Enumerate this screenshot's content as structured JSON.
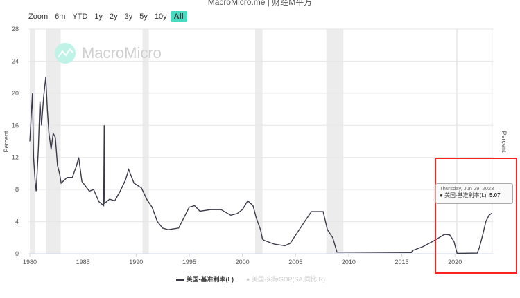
{
  "header": {
    "title": "MacroMicro.me | 财经M平方"
  },
  "range_selector": {
    "label": "Zoom",
    "buttons": [
      "6m",
      "YTD",
      "1y",
      "2y",
      "3y",
      "5y",
      "10y",
      "All"
    ],
    "active": "All"
  },
  "watermark": "MacroMicro",
  "tooltip": {
    "date": "Thursday, Jun 29, 2023",
    "series": "美国-基准利率(L)",
    "value": "5.07"
  },
  "colors": {
    "line": "#3a3a4a",
    "accent": "#49dbbf",
    "highlight": "#ff2222",
    "recession": "#ececec"
  },
  "chart_data": {
    "type": "line",
    "title": "",
    "ylabel": "Percent",
    "y2label": "Percent",
    "ylim": [
      0,
      28
    ],
    "xlim": [
      1979.9,
      2023.6
    ],
    "yticks": [
      0,
      4,
      8,
      12,
      16,
      20,
      24,
      28
    ],
    "xticks": [
      1980,
      1985,
      1990,
      1995,
      2000,
      2005,
      2010,
      2015,
      2020
    ],
    "recessions": [
      [
        1980.0,
        1980.5
      ],
      [
        1981.5,
        1982.9
      ],
      [
        1990.6,
        1991.2
      ],
      [
        2001.2,
        2001.9
      ],
      [
        2007.9,
        2009.5
      ],
      [
        2020.1,
        2020.3
      ]
    ],
    "legend": [
      {
        "name": "美国-基准利率(L)",
        "visible": true
      },
      {
        "name": "美国-实际GDP(SA,同比,R)",
        "visible": false
      }
    ],
    "series": [
      {
        "name": "美国-基准利率(L)",
        "points": [
          [
            1980.0,
            14
          ],
          [
            1980.15,
            17.6
          ],
          [
            1980.25,
            20
          ],
          [
            1980.35,
            12
          ],
          [
            1980.5,
            9
          ],
          [
            1980.6,
            7.8
          ],
          [
            1980.8,
            13
          ],
          [
            1980.95,
            19
          ],
          [
            1981.1,
            16
          ],
          [
            1981.3,
            19.5
          ],
          [
            1981.5,
            22
          ],
          [
            1981.65,
            18
          ],
          [
            1981.8,
            15
          ],
          [
            1982.0,
            13
          ],
          [
            1982.2,
            15
          ],
          [
            1982.4,
            14.5
          ],
          [
            1982.6,
            11
          ],
          [
            1982.8,
            10
          ],
          [
            1982.95,
            8.8
          ],
          [
            1983.5,
            9.5
          ],
          [
            1984.0,
            9.5
          ],
          [
            1984.4,
            11
          ],
          [
            1984.6,
            12
          ],
          [
            1984.9,
            9
          ],
          [
            1985.2,
            8.5
          ],
          [
            1985.6,
            7.8
          ],
          [
            1986.0,
            8
          ],
          [
            1986.5,
            6.5
          ],
          [
            1986.95,
            6
          ],
          [
            1987.0,
            16
          ],
          [
            1987.05,
            6.3
          ],
          [
            1987.5,
            6.8
          ],
          [
            1988.0,
            6.6
          ],
          [
            1988.5,
            7.8
          ],
          [
            1989.0,
            9.2
          ],
          [
            1989.3,
            10.5
          ],
          [
            1989.8,
            8.8
          ],
          [
            1990.5,
            8.2
          ],
          [
            1991.0,
            6.8
          ],
          [
            1991.5,
            5.8
          ],
          [
            1992.0,
            4
          ],
          [
            1992.5,
            3.2
          ],
          [
            1993.0,
            3
          ],
          [
            1994.0,
            3.2
          ],
          [
            1994.5,
            4.5
          ],
          [
            1995.0,
            5.8
          ],
          [
            1995.5,
            6
          ],
          [
            1996.0,
            5.3
          ],
          [
            1997.0,
            5.5
          ],
          [
            1998.0,
            5.5
          ],
          [
            1998.9,
            4.8
          ],
          [
            1999.5,
            5
          ],
          [
            2000.0,
            5.5
          ],
          [
            2000.5,
            6.6
          ],
          [
            2001.0,
            6
          ],
          [
            2001.3,
            4.5
          ],
          [
            2001.7,
            3
          ],
          [
            2001.9,
            1.8
          ],
          [
            2002.0,
            1.7
          ],
          [
            2003.0,
            1.2
          ],
          [
            2004.0,
            1
          ],
          [
            2004.5,
            1.3
          ],
          [
            2005.0,
            2.3
          ],
          [
            2006.0,
            4.3
          ],
          [
            2006.5,
            5.25
          ],
          [
            2007.6,
            5.25
          ],
          [
            2008.0,
            3
          ],
          [
            2008.5,
            2
          ],
          [
            2008.9,
            0.2
          ],
          [
            2015.9,
            0.15
          ],
          [
            2016.0,
            0.4
          ],
          [
            2017.0,
            0.9
          ],
          [
            2018.0,
            1.6
          ],
          [
            2019.0,
            2.4
          ],
          [
            2019.5,
            2.35
          ],
          [
            2019.9,
            1.55
          ],
          [
            2020.2,
            0.05
          ],
          [
            2022.1,
            0.08
          ],
          [
            2022.3,
            0.8
          ],
          [
            2022.6,
            2.3
          ],
          [
            2022.9,
            4.0
          ],
          [
            2023.2,
            4.8
          ],
          [
            2023.49,
            5.07
          ]
        ]
      }
    ]
  }
}
